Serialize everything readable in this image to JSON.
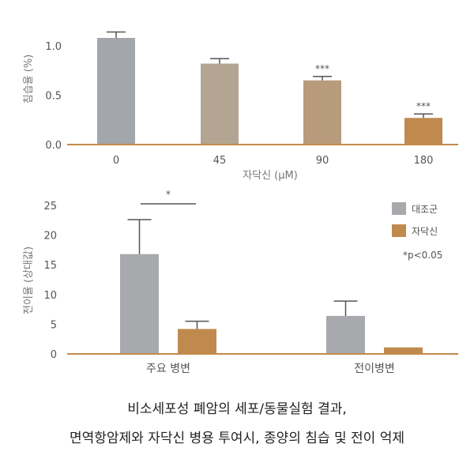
{
  "chart_data": [
    {
      "type": "bar",
      "title": "",
      "ylabel": "침습율 (%)",
      "xlabel": "자닥신 (μM)",
      "categories": [
        "0",
        "45",
        "90",
        "180"
      ],
      "values": [
        1.08,
        0.82,
        0.65,
        0.27
      ],
      "errors": [
        0.06,
        0.05,
        0.04,
        0.04
      ],
      "annotations": [
        "",
        "",
        "***",
        "***"
      ],
      "bar_colors": [
        "#a3a6aa",
        "#b3a592",
        "#b89b7a",
        "#c08a4f"
      ],
      "ylim": [
        0,
        1.25
      ],
      "yticks": [
        0.0,
        0.5,
        1.0
      ],
      "ytick_labels": [
        "0.0",
        "0.5",
        "1.0"
      ],
      "grid": false
    },
    {
      "type": "bar",
      "title": "",
      "ylabel": "전이율 (상대값)",
      "xlabel": "",
      "categories": [
        "주요 병변",
        "전이병변"
      ],
      "series": [
        {
          "name": "대조군",
          "color": "#a7a9ac",
          "values": [
            16.8,
            6.4
          ],
          "errors": [
            5.8,
            2.5
          ]
        },
        {
          "name": "자닥신",
          "color": "#c08a4f",
          "values": [
            4.2,
            1.1
          ],
          "errors": [
            1.3,
            0
          ]
        }
      ],
      "ylim": [
        0,
        27
      ],
      "yticks": [
        0,
        5,
        10,
        15,
        20,
        25
      ],
      "ytick_labels": [
        "0",
        "5",
        "10",
        "15",
        "20",
        "25"
      ],
      "significance": [
        {
          "category": "주요 병변",
          "text": "*"
        }
      ],
      "note": "*p<0.05",
      "legend_position": "top-right",
      "grid": false
    }
  ],
  "caption": {
    "line1": "비소세포성 폐암의 세포/동물실험 결과,",
    "line2": "면역항암제와  자닥신 병용 투여시, 종양의 침습 및 전이 억제"
  },
  "colors": {
    "axis": "#c48a4a",
    "error_bar": "#555555",
    "text": "#555555"
  }
}
